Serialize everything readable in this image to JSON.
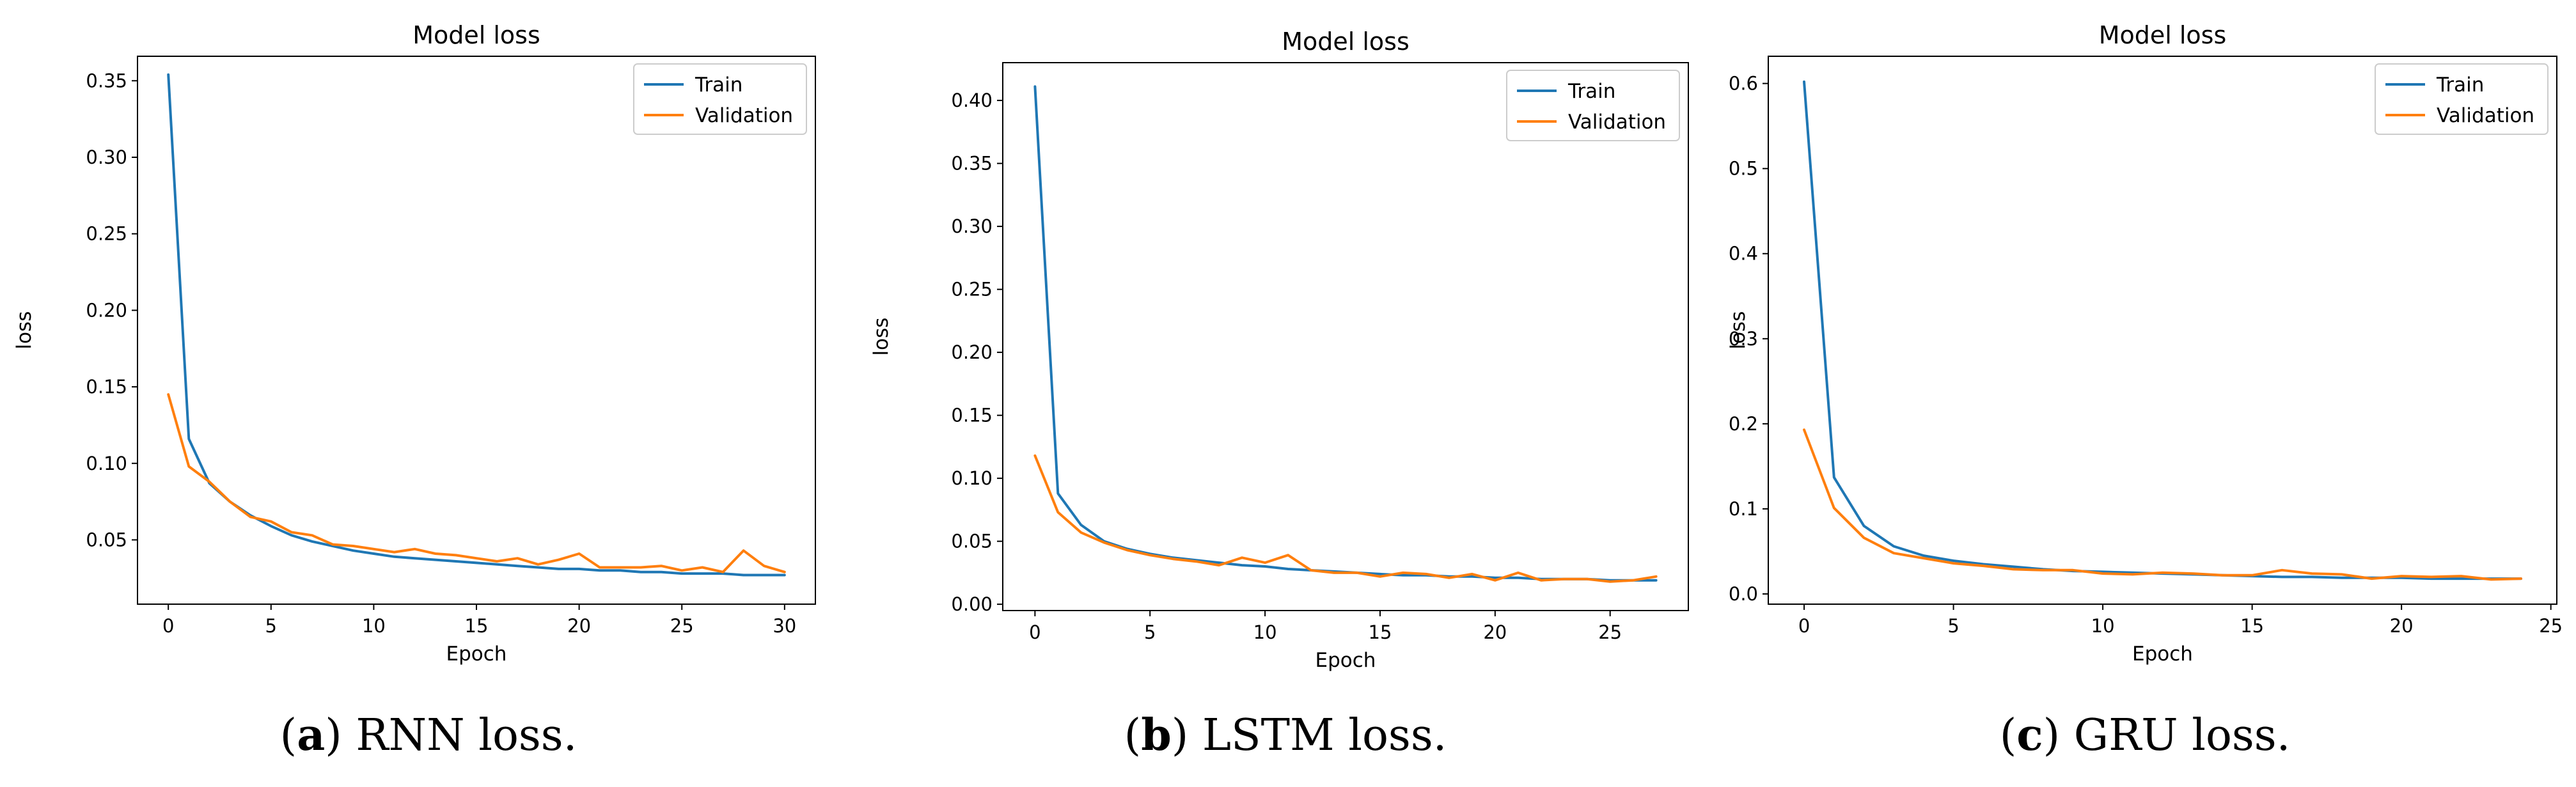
{
  "colors": {
    "train": "#1f77b4",
    "validation": "#ff7f0e",
    "axis": "#000000",
    "legend_border": "#cccccc"
  },
  "chart_data": [
    {
      "type": "line",
      "title": "Model loss",
      "xlabel": "Epoch",
      "ylabel": "loss",
      "xlim": [
        -1.5,
        31.5
      ],
      "ylim": [
        0.008,
        0.366
      ],
      "xticks": [
        0,
        5,
        10,
        15,
        20,
        25,
        30
      ],
      "yticks": [
        0.05,
        0.1,
        0.15,
        0.2,
        0.25,
        0.3,
        0.35
      ],
      "ytick_labels": [
        "0.05",
        "0.10",
        "0.15",
        "0.20",
        "0.25",
        "0.30",
        "0.35"
      ],
      "legend": "top-right",
      "series": [
        {
          "name": "Train",
          "x": [
            0,
            1,
            2,
            3,
            4,
            5,
            6,
            7,
            8,
            9,
            10,
            11,
            12,
            13,
            14,
            15,
            16,
            17,
            18,
            19,
            20,
            21,
            22,
            23,
            24,
            25,
            26,
            27,
            28,
            29,
            30
          ],
          "values": [
            0.354,
            0.116,
            0.087,
            0.075,
            0.066,
            0.059,
            0.053,
            0.049,
            0.046,
            0.043,
            0.041,
            0.039,
            0.038,
            0.037,
            0.036,
            0.035,
            0.034,
            0.033,
            0.032,
            0.031,
            0.031,
            0.03,
            0.03,
            0.029,
            0.029,
            0.028,
            0.028,
            0.028,
            0.027,
            0.027,
            0.027
          ]
        },
        {
          "name": "Validation",
          "x": [
            0,
            1,
            2,
            3,
            4,
            5,
            6,
            7,
            8,
            9,
            10,
            11,
            12,
            13,
            14,
            15,
            16,
            17,
            18,
            19,
            20,
            21,
            22,
            23,
            24,
            25,
            26,
            27,
            28,
            29,
            30
          ],
          "values": [
            0.145,
            0.098,
            0.088,
            0.075,
            0.065,
            0.062,
            0.055,
            0.053,
            0.047,
            0.046,
            0.044,
            0.042,
            0.044,
            0.041,
            0.04,
            0.038,
            0.036,
            0.038,
            0.034,
            0.037,
            0.041,
            0.032,
            0.032,
            0.032,
            0.033,
            0.03,
            0.032,
            0.029,
            0.043,
            0.033,
            0.029
          ]
        }
      ],
      "caption": {
        "letter": "a",
        "text": ") RNN loss."
      }
    },
    {
      "type": "line",
      "title": "Model loss",
      "xlabel": "Epoch",
      "ylabel": "loss",
      "xlim": [
        -1.4,
        28.4
      ],
      "ylim": [
        -0.005,
        0.43
      ],
      "xticks": [
        0,
        5,
        10,
        15,
        20,
        25
      ],
      "yticks": [
        0.0,
        0.05,
        0.1,
        0.15,
        0.2,
        0.25,
        0.3,
        0.35,
        0.4
      ],
      "ytick_labels": [
        "0.00",
        "0.05",
        "0.10",
        "0.15",
        "0.20",
        "0.25",
        "0.30",
        "0.35",
        "0.40"
      ],
      "legend": "top-right",
      "series": [
        {
          "name": "Train",
          "x": [
            0,
            1,
            2,
            3,
            4,
            5,
            6,
            7,
            8,
            9,
            10,
            11,
            12,
            13,
            14,
            15,
            16,
            17,
            18,
            19,
            20,
            21,
            22,
            23,
            24,
            25,
            26,
            27
          ],
          "values": [
            0.411,
            0.088,
            0.063,
            0.05,
            0.044,
            0.04,
            0.037,
            0.035,
            0.033,
            0.031,
            0.03,
            0.028,
            0.027,
            0.026,
            0.025,
            0.024,
            0.023,
            0.023,
            0.022,
            0.022,
            0.021,
            0.021,
            0.02,
            0.02,
            0.02,
            0.019,
            0.019,
            0.019
          ]
        },
        {
          "name": "Validation",
          "x": [
            0,
            1,
            2,
            3,
            4,
            5,
            6,
            7,
            8,
            9,
            10,
            11,
            12,
            13,
            14,
            15,
            16,
            17,
            18,
            19,
            20,
            21,
            22,
            23,
            24,
            25,
            26,
            27
          ],
          "values": [
            0.118,
            0.073,
            0.057,
            0.049,
            0.043,
            0.039,
            0.036,
            0.034,
            0.031,
            0.037,
            0.033,
            0.039,
            0.027,
            0.025,
            0.025,
            0.022,
            0.025,
            0.024,
            0.021,
            0.024,
            0.019,
            0.025,
            0.019,
            0.02,
            0.02,
            0.018,
            0.019,
            0.022
          ]
        }
      ],
      "caption": {
        "letter": "b",
        "text": ") LSTM loss."
      }
    },
    {
      "type": "line",
      "title": "Model loss",
      "xlabel": "Epoch",
      "ylabel": "loss",
      "xlim": [
        -1.2,
        25.2
      ],
      "ylim": [
        -0.012,
        0.632
      ],
      "xticks": [
        0,
        5,
        10,
        15,
        20,
        25
      ],
      "yticks": [
        0.0,
        0.1,
        0.2,
        0.3,
        0.4,
        0.5,
        0.6
      ],
      "ytick_labels": [
        "0.0",
        "0.1",
        "0.2",
        "0.3",
        "0.4",
        "0.5",
        "0.6"
      ],
      "legend": "top-right",
      "series": [
        {
          "name": "Train",
          "x": [
            0,
            1,
            2,
            3,
            4,
            5,
            6,
            7,
            8,
            9,
            10,
            11,
            12,
            13,
            14,
            15,
            16,
            17,
            18,
            19,
            20,
            21,
            22,
            23,
            24
          ],
          "values": [
            0.602,
            0.137,
            0.08,
            0.056,
            0.045,
            0.039,
            0.035,
            0.032,
            0.029,
            0.027,
            0.026,
            0.025,
            0.024,
            0.023,
            0.022,
            0.021,
            0.02,
            0.02,
            0.019,
            0.019,
            0.019,
            0.018,
            0.018,
            0.018,
            0.018
          ]
        },
        {
          "name": "Validation",
          "x": [
            0,
            1,
            2,
            3,
            4,
            5,
            6,
            7,
            8,
            9,
            10,
            11,
            12,
            13,
            14,
            15,
            16,
            17,
            18,
            19,
            20,
            21,
            22,
            23,
            24
          ],
          "values": [
            0.193,
            0.101,
            0.066,
            0.048,
            0.042,
            0.036,
            0.033,
            0.029,
            0.028,
            0.028,
            0.024,
            0.023,
            0.025,
            0.024,
            0.022,
            0.022,
            0.028,
            0.024,
            0.023,
            0.018,
            0.021,
            0.02,
            0.021,
            0.017,
            0.018
          ]
        }
      ],
      "caption": {
        "letter": "c",
        "text": ") GRU loss."
      }
    }
  ]
}
